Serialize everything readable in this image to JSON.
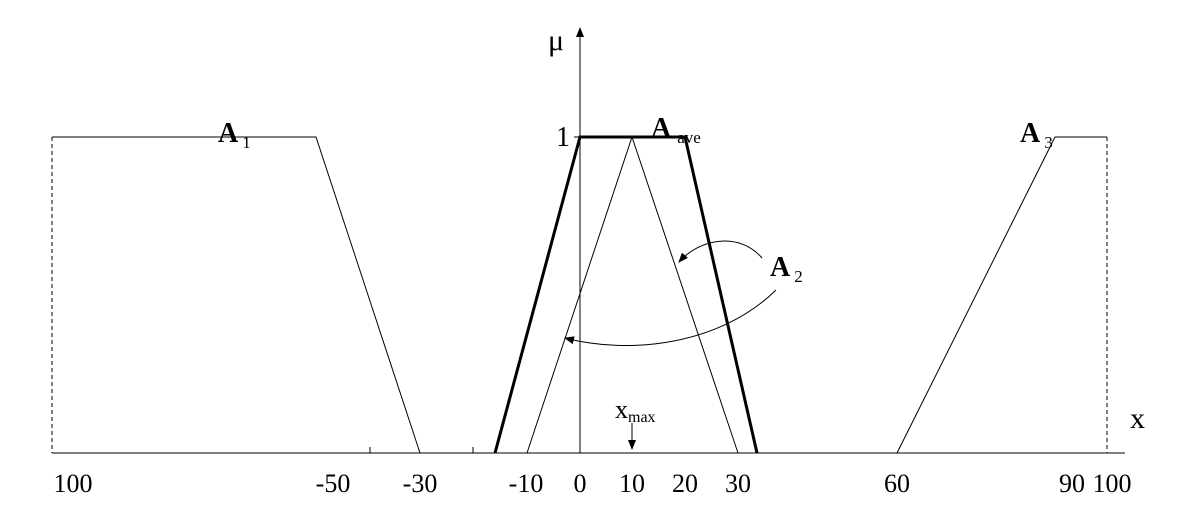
{
  "axis": {
    "y_label": "μ",
    "x_label": "x",
    "y_tick": "1"
  },
  "sets": [
    {
      "name": "A",
      "sub": "1"
    },
    {
      "name": "A",
      "sub": "ave"
    },
    {
      "name": "A",
      "sub": "3"
    },
    {
      "name": "A",
      "sub": "2"
    }
  ],
  "x_max": {
    "name": "x",
    "sub": "max"
  },
  "x_ticks": [
    "100",
    "-50",
    "-30",
    "-10",
    "0",
    "10",
    "20",
    "30",
    "60",
    "90",
    "100"
  ]
}
